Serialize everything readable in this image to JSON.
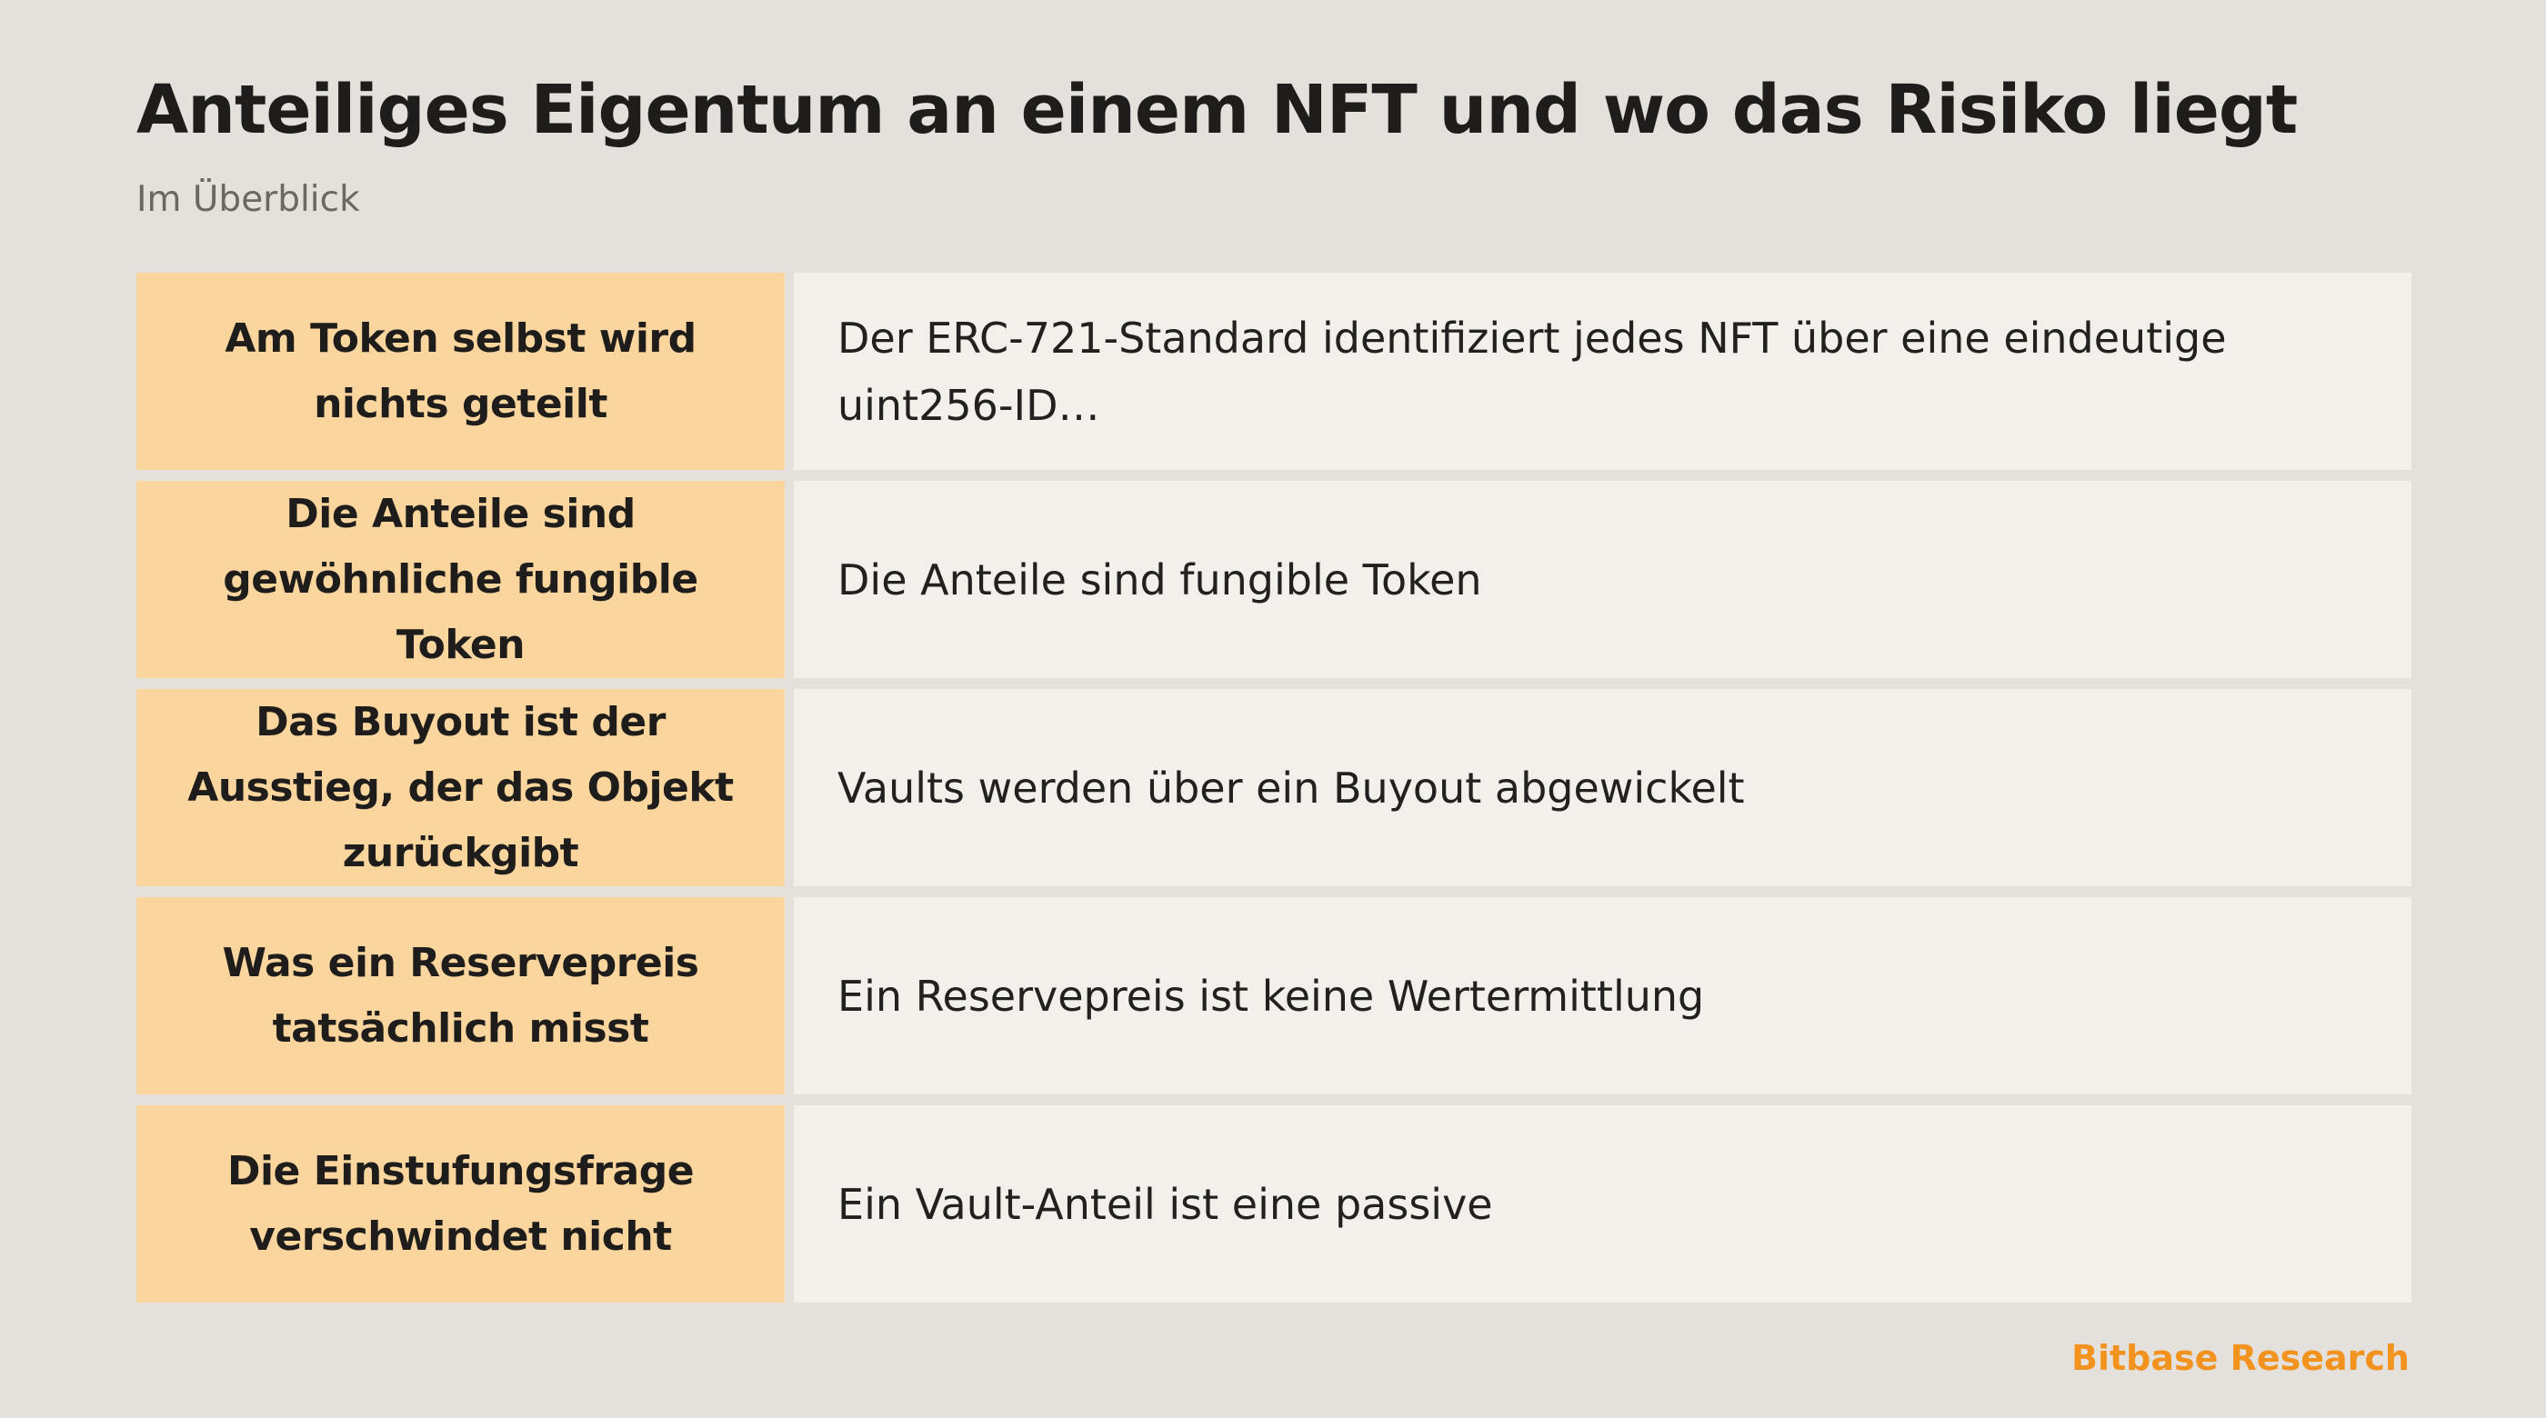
{
  "header": {
    "title": "Anteiliges Eigentum an einem NFT und wo das Risiko liegt",
    "subtitle": "Im Überblick"
  },
  "rows": [
    {
      "label": "Am Token selbst wird nichts geteilt",
      "text": "Der ERC-721-Standard identifiziert jedes NFT über eine eindeutige uint256-ID…"
    },
    {
      "label": "Die Anteile sind gewöhnliche fungible Token",
      "text": "Die Anteile sind fungible Token"
    },
    {
      "label": "Das Buyout ist der Ausstieg, der das Objekt zurückgibt",
      "text": "Vaults werden über ein Buyout abgewickelt"
    },
    {
      "label": "Was ein Reservepreis tatsächlich misst",
      "text": "Ein Reservepreis ist keine Wertermittlung"
    },
    {
      "label": "Die Einstufungsfrage verschwindet nicht",
      "text": "Ein Vault-Anteil ist eine passive"
    }
  ],
  "footer": {
    "brand": "Bitbase Research"
  },
  "colors": {
    "background": "#e4e0db",
    "label_fill": "#fad59e",
    "text_fill": "#f3f0eb",
    "brand_accent": "#f2931f"
  }
}
